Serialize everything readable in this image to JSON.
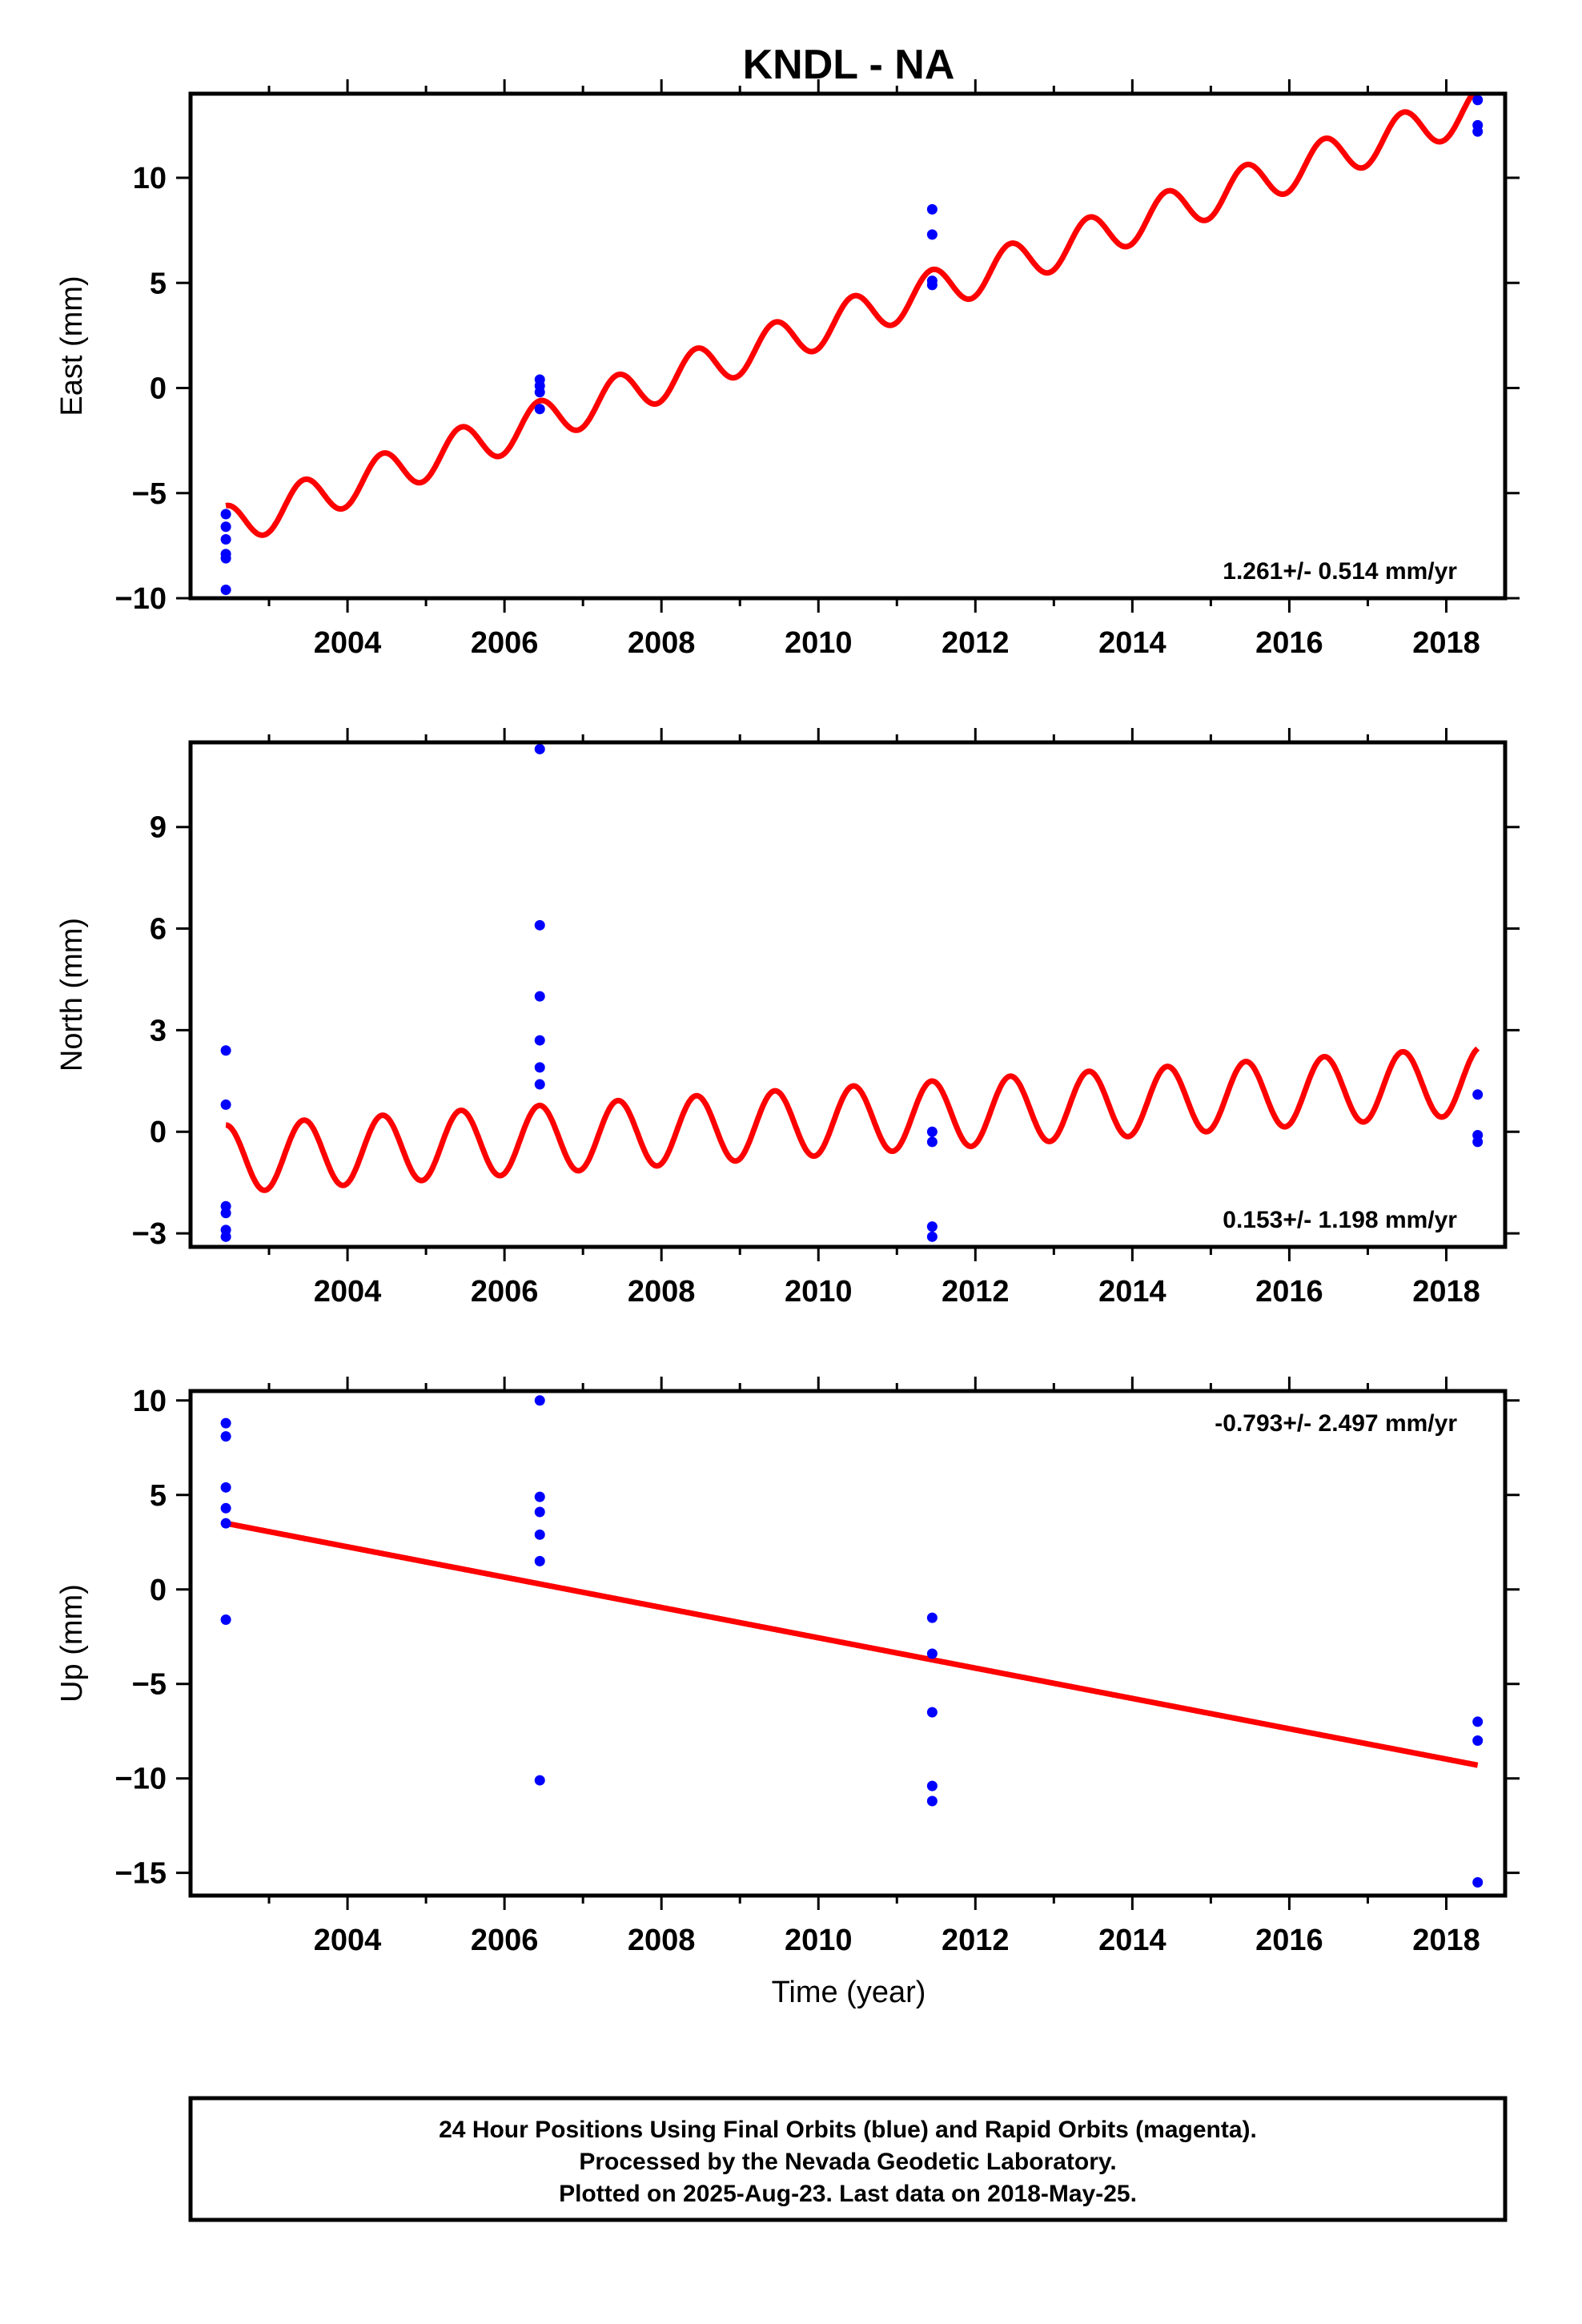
{
  "title": "KNDL - NA",
  "xlabel": "Time (year)",
  "footer": {
    "line1": "24 Hour Positions Using Final Orbits (blue) and Rapid Orbits (magenta).",
    "line2": "Processed by the Nevada Geodetic Laboratory.",
    "line3": "Plotted on 2025-Aug-23. Last data on 2018-May-25."
  },
  "colors": {
    "final_orbits": "#0000ff",
    "model": "#ff0000",
    "frame": "#000000"
  },
  "chart_data": [
    {
      "type": "scatter",
      "ylabel": "East (mm)",
      "rate": "1.261+/- 0.514 mm/yr",
      "rate_position": "bottom-right",
      "xlim": [
        2002.0,
        2018.75
      ],
      "ylim": [
        -10,
        14
      ],
      "xticks": [
        2004,
        2006,
        2008,
        2010,
        2012,
        2014,
        2016,
        2018
      ],
      "yticks": [
        -10,
        -5,
        0,
        5,
        10
      ],
      "model": {
        "type": "line",
        "start": [
          2002.45,
          -6.6
        ],
        "end": [
          2018.4,
          13.3
        ],
        "seasonal_amplitude": 1.0,
        "offset_changes_at": [
          2002.45,
          2006.45,
          2011.45,
          2018.4
        ]
      },
      "points": [
        [
          2002.45,
          -6.0
        ],
        [
          2002.45,
          -6.6
        ],
        [
          2002.45,
          -7.2
        ],
        [
          2002.45,
          -7.9
        ],
        [
          2002.45,
          -8.1
        ],
        [
          2002.45,
          -9.6
        ],
        [
          2006.45,
          0.4
        ],
        [
          2006.45,
          0.1
        ],
        [
          2006.45,
          -0.2
        ],
        [
          2006.45,
          -1.0
        ],
        [
          2011.45,
          8.5
        ],
        [
          2011.45,
          7.3
        ],
        [
          2011.45,
          5.1
        ],
        [
          2011.45,
          4.9
        ],
        [
          2018.4,
          13.7
        ],
        [
          2018.4,
          12.5
        ],
        [
          2018.4,
          12.2
        ]
      ]
    },
    {
      "type": "scatter",
      "ylabel": "North (mm)",
      "rate": "0.153+/- 1.198 mm/yr",
      "rate_position": "bottom-right",
      "xlim": [
        2002.0,
        2018.75
      ],
      "ylim": [
        -3.4,
        11.5
      ],
      "xticks": [
        2004,
        2006,
        2008,
        2010,
        2012,
        2014,
        2016,
        2018
      ],
      "yticks": [
        -3,
        0,
        3,
        6,
        9
      ],
      "model": {
        "type": "line",
        "start": [
          2002.45,
          -0.8
        ],
        "end": [
          2018.4,
          1.5
        ],
        "seasonal_amplitude": 1.0,
        "offset_changes_at": [
          2002.45,
          2006.45,
          2011.45,
          2018.4
        ]
      },
      "points": [
        [
          2002.45,
          2.4
        ],
        [
          2002.45,
          0.8
        ],
        [
          2002.45,
          -2.2
        ],
        [
          2002.45,
          -2.4
        ],
        [
          2002.45,
          -2.9
        ],
        [
          2002.45,
          -3.1
        ],
        [
          2006.45,
          11.3
        ],
        [
          2006.45,
          6.1
        ],
        [
          2006.45,
          4.0
        ],
        [
          2006.45,
          2.7
        ],
        [
          2006.45,
          1.9
        ],
        [
          2006.45,
          1.4
        ],
        [
          2011.45,
          0.0
        ],
        [
          2011.45,
          -0.3
        ],
        [
          2011.45,
          -2.8
        ],
        [
          2011.45,
          -3.1
        ],
        [
          2018.4,
          1.1
        ],
        [
          2018.4,
          -0.1
        ],
        [
          2018.4,
          -0.3
        ]
      ]
    },
    {
      "type": "scatter",
      "ylabel": "Up (mm)",
      "rate": "-0.793+/- 2.497 mm/yr",
      "rate_position": "top-right",
      "xlim": [
        2002.0,
        2018.75
      ],
      "ylim": [
        -16.2,
        10.5
      ],
      "xticks": [
        2004,
        2006,
        2008,
        2010,
        2012,
        2014,
        2016,
        2018
      ],
      "yticks": [
        -15,
        -10,
        -5,
        0,
        5,
        10
      ],
      "model": {
        "type": "line",
        "start": [
          2002.45,
          3.5
        ],
        "end": [
          2018.4,
          -9.3
        ],
        "seasonal_amplitude": 0.0
      },
      "points": [
        [
          2002.45,
          8.8
        ],
        [
          2002.45,
          8.1
        ],
        [
          2002.45,
          5.4
        ],
        [
          2002.45,
          4.3
        ],
        [
          2002.45,
          3.5
        ],
        [
          2002.45,
          -1.6
        ],
        [
          2006.45,
          10.0
        ],
        [
          2006.45,
          4.9
        ],
        [
          2006.45,
          4.1
        ],
        [
          2006.45,
          2.9
        ],
        [
          2006.45,
          1.5
        ],
        [
          2006.45,
          -10.1
        ],
        [
          2011.45,
          -1.5
        ],
        [
          2011.45,
          -3.4
        ],
        [
          2011.45,
          -6.5
        ],
        [
          2011.45,
          -10.4
        ],
        [
          2011.45,
          -11.2
        ],
        [
          2018.4,
          -7.0
        ],
        [
          2018.4,
          -8.0
        ],
        [
          2018.4,
          -15.5
        ]
      ]
    }
  ]
}
